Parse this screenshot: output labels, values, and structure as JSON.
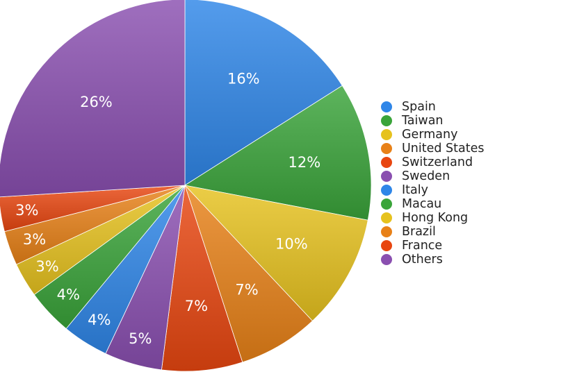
{
  "chart_data": {
    "type": "pie",
    "title": "",
    "legend_position": "right",
    "slices": [
      {
        "label": "Spain",
        "value": 16,
        "display": "16%",
        "color": "#2f86e8"
      },
      {
        "label": "Taiwan",
        "value": 12,
        "display": "12%",
        "color": "#3aa43a"
      },
      {
        "label": "Germany",
        "value": 10,
        "display": "10%",
        "color": "#e6c21e"
      },
      {
        "label": "United States",
        "value": 7,
        "display": "7%",
        "color": "#e88118"
      },
      {
        "label": "Switzerland",
        "value": 7,
        "display": "7%",
        "color": "#e84610"
      },
      {
        "label": "Sweden",
        "value": 5,
        "display": "5%",
        "color": "#8a4fb0"
      },
      {
        "label": "Italy",
        "value": 4,
        "display": "4%",
        "color": "#2f86e8"
      },
      {
        "label": "Macau",
        "value": 4,
        "display": "4%",
        "color": "#3aa43a"
      },
      {
        "label": "Hong Kong",
        "value": 3,
        "display": "3%",
        "color": "#e6c21e"
      },
      {
        "label": "Brazil",
        "value": 3,
        "display": "3%",
        "color": "#e88118"
      },
      {
        "label": "France",
        "value": 3,
        "display": "3%",
        "color": "#e84610"
      },
      {
        "label": "Others",
        "value": 26,
        "display": "26%",
        "color": "#8a4fb0"
      }
    ]
  }
}
